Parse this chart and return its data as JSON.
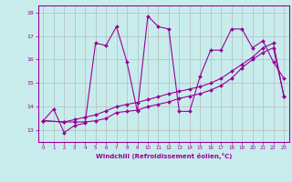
{
  "xlabel": "Windchill (Refroidissement éolien,°C)",
  "bg_color": "#c8ecec",
  "line_color": "#990099",
  "grid_color": "#b0b0b0",
  "xlim": [
    -0.5,
    23.5
  ],
  "ylim": [
    12.5,
    18.3
  ],
  "yticks": [
    13,
    14,
    15,
    16,
    17,
    18
  ],
  "xticks": [
    0,
    1,
    2,
    3,
    4,
    5,
    6,
    7,
    8,
    9,
    10,
    11,
    12,
    13,
    14,
    15,
    16,
    17,
    18,
    19,
    20,
    21,
    22,
    23
  ],
  "series1_x": [
    0,
    1,
    2,
    3,
    4,
    5,
    6,
    7,
    8,
    9,
    10,
    11,
    12,
    13,
    14,
    15,
    16,
    17,
    18,
    19,
    20,
    21,
    22,
    23
  ],
  "series1_y": [
    13.4,
    13.9,
    12.9,
    13.2,
    13.3,
    16.7,
    16.6,
    17.4,
    15.9,
    13.8,
    17.85,
    17.4,
    17.3,
    13.8,
    13.8,
    15.3,
    16.4,
    16.4,
    17.3,
    17.3,
    16.5,
    16.8,
    15.9,
    15.2
  ],
  "series2_x": [
    0,
    2,
    3,
    4,
    5,
    6,
    7,
    8,
    9,
    10,
    11,
    12,
    13,
    14,
    15,
    16,
    17,
    18,
    19,
    20,
    21,
    22,
    23
  ],
  "series2_y": [
    13.4,
    13.35,
    13.35,
    13.35,
    13.4,
    13.5,
    13.75,
    13.8,
    13.85,
    14.0,
    14.1,
    14.2,
    14.35,
    14.45,
    14.55,
    14.7,
    14.9,
    15.2,
    15.65,
    16.0,
    16.3,
    16.5,
    14.45
  ],
  "series3_x": [
    0,
    2,
    3,
    4,
    5,
    6,
    7,
    8,
    9,
    10,
    11,
    12,
    13,
    14,
    15,
    16,
    17,
    18,
    19,
    20,
    21,
    22,
    23
  ],
  "series3_y": [
    13.4,
    13.35,
    13.45,
    13.55,
    13.65,
    13.82,
    14.0,
    14.1,
    14.18,
    14.3,
    14.42,
    14.55,
    14.65,
    14.75,
    14.85,
    15.0,
    15.2,
    15.5,
    15.8,
    16.1,
    16.5,
    16.7,
    14.45
  ]
}
